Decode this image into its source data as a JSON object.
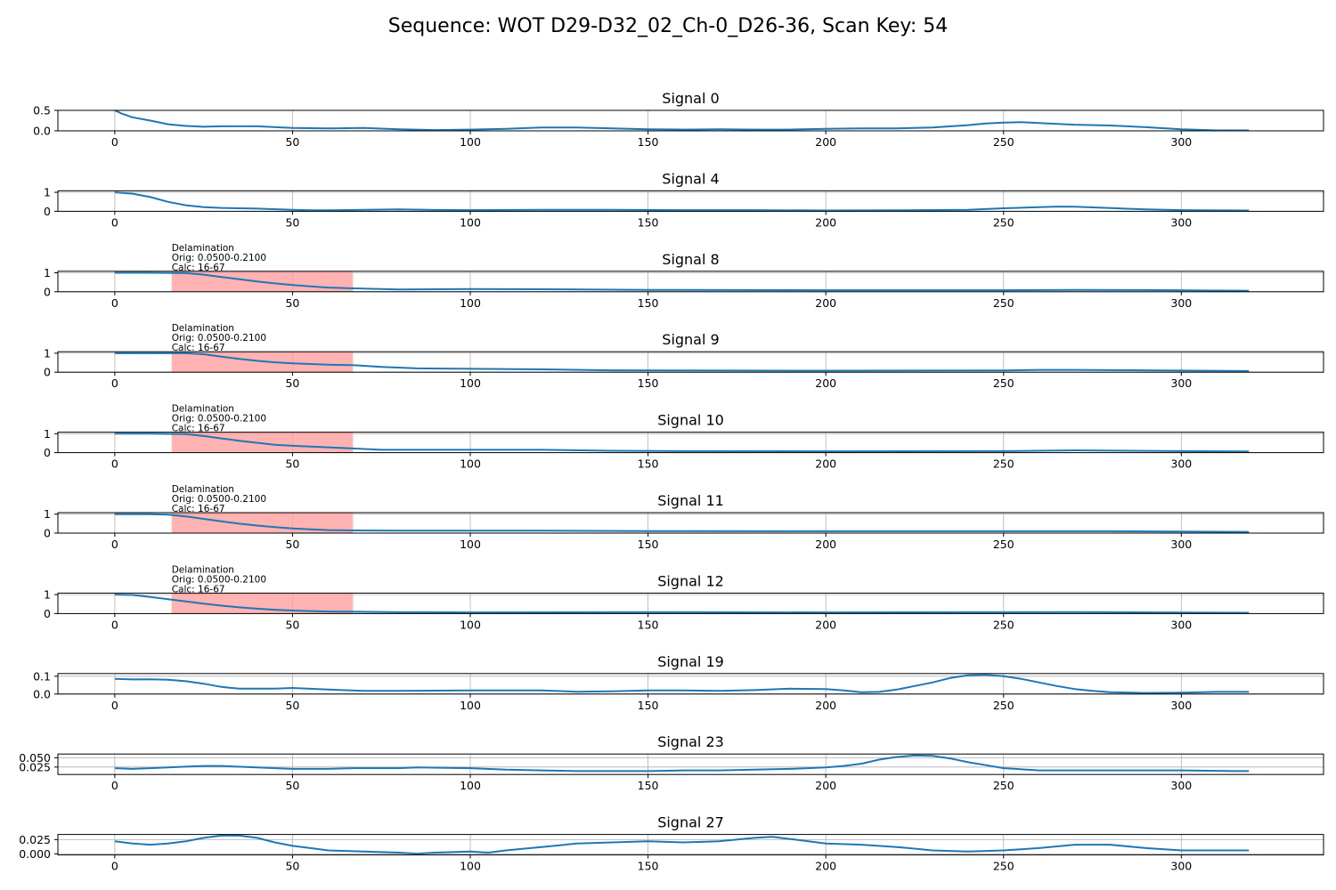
{
  "title": "Sequence: WOT D29-D32_02_Ch-0_D26-36, Scan Key: 54",
  "chart_data": [
    {
      "type": "line",
      "title": "Signal 0",
      "xlim": [
        -16,
        340
      ],
      "ylim": [
        0,
        0.5
      ],
      "xticks": [
        0,
        50,
        100,
        150,
        200,
        250,
        300
      ],
      "xtick_labels": [
        "0",
        "50",
        "100",
        "150",
        "200",
        "250",
        "300"
      ],
      "yticks": [
        0,
        0.5
      ],
      "ytick_labels": [
        "0.0",
        "0.5"
      ],
      "grid": true,
      "series": [
        {
          "color": "#1f77b4",
          "x": [
            0,
            2,
            5,
            10,
            15,
            20,
            25,
            30,
            40,
            50,
            60,
            70,
            80,
            90,
            100,
            110,
            120,
            130,
            140,
            150,
            160,
            170,
            180,
            190,
            200,
            210,
            220,
            230,
            240,
            245,
            250,
            255,
            260,
            270,
            280,
            290,
            300,
            310,
            319
          ],
          "y": [
            0.5,
            0.42,
            0.33,
            0.25,
            0.16,
            0.12,
            0.1,
            0.11,
            0.11,
            0.07,
            0.06,
            0.07,
            0.04,
            0.02,
            0.03,
            0.05,
            0.08,
            0.08,
            0.06,
            0.04,
            0.03,
            0.04,
            0.03,
            0.03,
            0.05,
            0.06,
            0.06,
            0.08,
            0.14,
            0.18,
            0.2,
            0.21,
            0.19,
            0.15,
            0.13,
            0.09,
            0.04,
            0.01,
            0.01
          ]
        }
      ]
    },
    {
      "type": "line",
      "title": "Signal 4",
      "xlim": [
        -16,
        340
      ],
      "ylim": [
        0,
        1.08
      ],
      "xticks": [
        0,
        50,
        100,
        150,
        200,
        250,
        300
      ],
      "xtick_labels": [
        "0",
        "50",
        "100",
        "150",
        "200",
        "250",
        "300"
      ],
      "yticks": [
        0,
        1
      ],
      "ytick_labels": [
        "0",
        "1"
      ],
      "grid": true,
      "series": [
        {
          "color": "#1f77b4",
          "x": [
            0,
            5,
            10,
            15,
            20,
            25,
            30,
            40,
            50,
            55,
            60,
            70,
            80,
            90,
            100,
            120,
            140,
            160,
            180,
            200,
            220,
            240,
            250,
            260,
            265,
            270,
            280,
            290,
            300,
            319
          ],
          "y": [
            1.0,
            0.93,
            0.75,
            0.5,
            0.32,
            0.22,
            0.18,
            0.14,
            0.08,
            0.05,
            0.05,
            0.08,
            0.1,
            0.07,
            0.06,
            0.08,
            0.08,
            0.06,
            0.06,
            0.04,
            0.05,
            0.08,
            0.16,
            0.22,
            0.25,
            0.24,
            0.17,
            0.1,
            0.06,
            0.04
          ]
        }
      ]
    },
    {
      "type": "line",
      "title": "Signal 8",
      "xlim": [
        -16,
        340
      ],
      "ylim": [
        0,
        1.08
      ],
      "xticks": [
        0,
        50,
        100,
        150,
        200,
        250,
        300
      ],
      "xtick_labels": [
        "0",
        "50",
        "100",
        "150",
        "200",
        "250",
        "300"
      ],
      "yticks": [
        0,
        1
      ],
      "ytick_labels": [
        "0",
        "1"
      ],
      "grid": true,
      "annotation": {
        "label": "Delamination",
        "orig": "Orig: 0.0500-0.2100",
        "calc": "Calc: 16-67",
        "x_start": 16,
        "x_end": 67,
        "color": "#ff9999"
      },
      "series": [
        {
          "color": "#1f77b4",
          "x": [
            0,
            10,
            20,
            25,
            30,
            35,
            40,
            45,
            50,
            55,
            60,
            67,
            80,
            100,
            120,
            150,
            200,
            250,
            270,
            290,
            310,
            319
          ],
          "y": [
            1.0,
            1.0,
            0.98,
            0.9,
            0.78,
            0.66,
            0.54,
            0.44,
            0.35,
            0.28,
            0.22,
            0.18,
            0.12,
            0.14,
            0.13,
            0.1,
            0.08,
            0.08,
            0.1,
            0.09,
            0.06,
            0.05
          ]
        }
      ]
    },
    {
      "type": "line",
      "title": "Signal 9",
      "xlim": [
        -16,
        340
      ],
      "ylim": [
        0,
        1.08
      ],
      "xticks": [
        0,
        50,
        100,
        150,
        200,
        250,
        300
      ],
      "xtick_labels": [
        "0",
        "50",
        "100",
        "150",
        "200",
        "250",
        "300"
      ],
      "yticks": [
        0,
        1
      ],
      "ytick_labels": [
        "0",
        "1"
      ],
      "grid": true,
      "annotation": {
        "label": "Delamination",
        "orig": "Orig: 0.0500-0.2100",
        "calc": "Calc: 16-67",
        "x_start": 16,
        "x_end": 67,
        "color": "#ff9999"
      },
      "series": [
        {
          "color": "#1f77b4",
          "x": [
            0,
            10,
            20,
            25,
            30,
            35,
            40,
            45,
            50,
            55,
            60,
            67,
            75,
            85,
            100,
            120,
            140,
            160,
            200,
            250,
            260,
            270,
            290,
            319
          ],
          "y": [
            1.0,
            1.0,
            1.0,
            0.95,
            0.82,
            0.7,
            0.6,
            0.52,
            0.47,
            0.43,
            0.4,
            0.37,
            0.28,
            0.2,
            0.18,
            0.15,
            0.1,
            0.09,
            0.08,
            0.09,
            0.12,
            0.12,
            0.1,
            0.06
          ]
        }
      ]
    },
    {
      "type": "line",
      "title": "Signal 10",
      "xlim": [
        -16,
        340
      ],
      "ylim": [
        0,
        1.08
      ],
      "xticks": [
        0,
        50,
        100,
        150,
        200,
        250,
        300
      ],
      "xtick_labels": [
        "0",
        "50",
        "100",
        "150",
        "200",
        "250",
        "300"
      ],
      "yticks": [
        0,
        1
      ],
      "ytick_labels": [
        "0",
        "1"
      ],
      "grid": true,
      "annotation": {
        "label": "Delamination",
        "orig": "Orig: 0.0500-0.2100",
        "calc": "Calc: 16-67",
        "x_start": 16,
        "x_end": 67,
        "color": "#ff9999"
      },
      "series": [
        {
          "color": "#1f77b4",
          "x": [
            0,
            10,
            20,
            25,
            30,
            35,
            40,
            45,
            50,
            55,
            60,
            67,
            75,
            100,
            120,
            140,
            160,
            200,
            250,
            270,
            300,
            319
          ],
          "y": [
            1.0,
            1.0,
            0.98,
            0.88,
            0.75,
            0.63,
            0.52,
            0.42,
            0.36,
            0.32,
            0.28,
            0.22,
            0.15,
            0.15,
            0.15,
            0.1,
            0.08,
            0.07,
            0.08,
            0.12,
            0.08,
            0.06
          ]
        }
      ]
    },
    {
      "type": "line",
      "title": "Signal 11",
      "xlim": [
        -16,
        340
      ],
      "ylim": [
        0,
        1.08
      ],
      "xticks": [
        0,
        50,
        100,
        150,
        200,
        250,
        300
      ],
      "xtick_labels": [
        "0",
        "50",
        "100",
        "150",
        "200",
        "250",
        "300"
      ],
      "yticks": [
        0,
        1
      ],
      "ytick_labels": [
        "0",
        "1"
      ],
      "grid": true,
      "annotation": {
        "label": "Delamination",
        "orig": "Orig: 0.0500-0.2100",
        "calc": "Calc: 16-67",
        "x_start": 16,
        "x_end": 67,
        "color": "#ff9999"
      },
      "series": [
        {
          "color": "#1f77b4",
          "x": [
            0,
            10,
            15,
            20,
            25,
            30,
            35,
            40,
            45,
            50,
            55,
            60,
            67,
            80,
            100,
            120,
            150,
            200,
            250,
            280,
            319
          ],
          "y": [
            1.0,
            1.0,
            0.97,
            0.88,
            0.75,
            0.62,
            0.5,
            0.4,
            0.32,
            0.25,
            0.2,
            0.16,
            0.14,
            0.13,
            0.13,
            0.13,
            0.11,
            0.1,
            0.1,
            0.1,
            0.06
          ]
        }
      ]
    },
    {
      "type": "line",
      "title": "Signal 12",
      "xlim": [
        -16,
        340
      ],
      "ylim": [
        0,
        1.08
      ],
      "xticks": [
        0,
        50,
        100,
        150,
        200,
        250,
        300
      ],
      "xtick_labels": [
        "0",
        "50",
        "100",
        "150",
        "200",
        "250",
        "300"
      ],
      "yticks": [
        0,
        1
      ],
      "ytick_labels": [
        "0",
        "1"
      ],
      "grid": true,
      "annotation": {
        "label": "Delamination",
        "orig": "Orig: 0.0500-0.2100",
        "calc": "Calc: 16-67",
        "x_start": 16,
        "x_end": 67,
        "color": "#ff9999"
      },
      "series": [
        {
          "color": "#1f77b4",
          "x": [
            0,
            5,
            10,
            15,
            20,
            25,
            30,
            35,
            40,
            45,
            50,
            55,
            60,
            67,
            80,
            100,
            150,
            200,
            250,
            270,
            300,
            319
          ],
          "y": [
            1.0,
            0.98,
            0.88,
            0.76,
            0.64,
            0.52,
            0.42,
            0.33,
            0.26,
            0.2,
            0.16,
            0.13,
            0.11,
            0.1,
            0.07,
            0.06,
            0.07,
            0.06,
            0.07,
            0.08,
            0.05,
            0.04
          ]
        }
      ]
    },
    {
      "type": "line",
      "title": "Signal 19",
      "xlim": [
        -16,
        340
      ],
      "ylim": [
        0,
        0.115
      ],
      "xticks": [
        0,
        50,
        100,
        150,
        200,
        250,
        300
      ],
      "xtick_labels": [
        "0",
        "50",
        "100",
        "150",
        "200",
        "250",
        "300"
      ],
      "yticks": [
        0,
        0.1
      ],
      "ytick_labels": [
        "0.0",
        "0.1"
      ],
      "grid": true,
      "series": [
        {
          "color": "#1f77b4",
          "x": [
            0,
            5,
            10,
            15,
            20,
            25,
            30,
            35,
            40,
            45,
            50,
            60,
            70,
            80,
            100,
            120,
            130,
            140,
            150,
            160,
            170,
            180,
            190,
            200,
            205,
            210,
            215,
            220,
            225,
            230,
            235,
            240,
            245,
            250,
            255,
            260,
            265,
            270,
            275,
            280,
            290,
            300,
            310,
            319
          ],
          "y": [
            0.085,
            0.082,
            0.083,
            0.08,
            0.072,
            0.058,
            0.04,
            0.03,
            0.03,
            0.03,
            0.034,
            0.025,
            0.018,
            0.018,
            0.02,
            0.02,
            0.013,
            0.015,
            0.02,
            0.02,
            0.018,
            0.022,
            0.03,
            0.028,
            0.02,
            0.01,
            0.012,
            0.025,
            0.045,
            0.065,
            0.09,
            0.105,
            0.108,
            0.1,
            0.085,
            0.065,
            0.045,
            0.028,
            0.018,
            0.01,
            0.006,
            0.008,
            0.012,
            0.012
          ]
        }
      ]
    },
    {
      "type": "line",
      "title": "Signal 23",
      "xlim": [
        -16,
        340
      ],
      "ylim": [
        0.005,
        0.06
      ],
      "xticks": [
        0,
        50,
        100,
        150,
        200,
        250,
        300
      ],
      "xtick_labels": [
        "0",
        "50",
        "100",
        "150",
        "200",
        "250",
        "300"
      ],
      "yticks": [
        0.025,
        0.05
      ],
      "ytick_labels": [
        "0.025",
        "0.050"
      ],
      "grid": true,
      "series": [
        {
          "color": "#1f77b4",
          "x": [
            0,
            5,
            10,
            15,
            20,
            25,
            30,
            40,
            45,
            50,
            60,
            67,
            80,
            85,
            100,
            110,
            120,
            130,
            140,
            150,
            160,
            170,
            180,
            190,
            200,
            205,
            210,
            215,
            220,
            225,
            230,
            235,
            240,
            245,
            250,
            260,
            280,
            300,
            315,
            319
          ],
          "y": [
            0.022,
            0.02,
            0.022,
            0.024,
            0.026,
            0.028,
            0.028,
            0.024,
            0.022,
            0.02,
            0.02,
            0.022,
            0.022,
            0.024,
            0.022,
            0.018,
            0.016,
            0.014,
            0.014,
            0.014,
            0.016,
            0.016,
            0.018,
            0.02,
            0.024,
            0.028,
            0.034,
            0.045,
            0.052,
            0.056,
            0.055,
            0.048,
            0.038,
            0.03,
            0.022,
            0.016,
            0.016,
            0.016,
            0.014,
            0.014
          ]
        }
      ]
    },
    {
      "type": "line",
      "title": "Signal 27",
      "xlim": [
        -16,
        340
      ],
      "ylim": [
        -0.002,
        0.034
      ],
      "xticks": [
        0,
        50,
        100,
        150,
        200,
        250,
        300
      ],
      "xtick_labels": [
        "0",
        "50",
        "100",
        "150",
        "200",
        "250",
        "300"
      ],
      "yticks": [
        0,
        0.025
      ],
      "ytick_labels": [
        "0.000",
        "0.025"
      ],
      "grid": true,
      "series": [
        {
          "color": "#1f77b4",
          "x": [
            0,
            5,
            10,
            15,
            20,
            25,
            30,
            35,
            40,
            45,
            50,
            55,
            60,
            70,
            80,
            85,
            90,
            100,
            105,
            110,
            120,
            130,
            140,
            150,
            160,
            170,
            180,
            185,
            190,
            200,
            210,
            220,
            230,
            240,
            250,
            260,
            270,
            280,
            290,
            300,
            310,
            319
          ],
          "y": [
            0.022,
            0.018,
            0.016,
            0.018,
            0.022,
            0.028,
            0.032,
            0.032,
            0.028,
            0.02,
            0.014,
            0.01,
            0.006,
            0.004,
            0.002,
            0.0,
            0.002,
            0.004,
            0.002,
            0.006,
            0.012,
            0.018,
            0.02,
            0.022,
            0.02,
            0.022,
            0.028,
            0.03,
            0.026,
            0.018,
            0.016,
            0.012,
            0.006,
            0.004,
            0.006,
            0.01,
            0.016,
            0.016,
            0.01,
            0.006,
            0.006,
            0.006
          ]
        }
      ]
    }
  ]
}
